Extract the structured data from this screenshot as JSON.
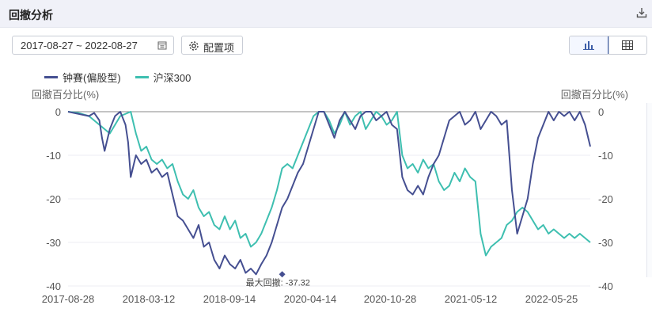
{
  "panel": {
    "title": "回撤分析"
  },
  "controls": {
    "date_range": "2017-08-27 ~ 2022-08-27",
    "config_label": "配置项"
  },
  "colors": {
    "series1": "#454f91",
    "series2": "#3ebfb0",
    "header_bg": "#f0f1f8"
  },
  "chart_data": {
    "type": "line",
    "y_label_left": "回撤百分比(%)",
    "y_label_right": "回撤百分比(%)",
    "ylim": [
      -40,
      0
    ],
    "y_ticks": [
      0,
      -10,
      -20,
      -30,
      -40
    ],
    "x_ticks": [
      "2017-08-28",
      "2018-03-12",
      "2018-09-14",
      "2020-04-14",
      "2020-10-28",
      "2021-05-12",
      "2022-05-25"
    ],
    "annotation": {
      "text": "最大回撤: -37.32",
      "x": 0.41,
      "y": -37.32
    },
    "x_domain": [
      0,
      1
    ],
    "series": [
      {
        "name": "钟賽(偏股型)",
        "color": "#454f91",
        "x": [
          0,
          0.02,
          0.04,
          0.05,
          0.06,
          0.065,
          0.07,
          0.08,
          0.09,
          0.1,
          0.11,
          0.115,
          0.12,
          0.13,
          0.14,
          0.15,
          0.16,
          0.17,
          0.18,
          0.19,
          0.2,
          0.21,
          0.22,
          0.23,
          0.24,
          0.25,
          0.26,
          0.27,
          0.28,
          0.29,
          0.3,
          0.31,
          0.32,
          0.33,
          0.34,
          0.35,
          0.36,
          0.37,
          0.38,
          0.39,
          0.4,
          0.41,
          0.42,
          0.43,
          0.44,
          0.45,
          0.46,
          0.47,
          0.48,
          0.49,
          0.5,
          0.51,
          0.52,
          0.53,
          0.54,
          0.55,
          0.56,
          0.57,
          0.58,
          0.59,
          0.6,
          0.61,
          0.62,
          0.63,
          0.64,
          0.65,
          0.66,
          0.67,
          0.68,
          0.69,
          0.7,
          0.71,
          0.72,
          0.73,
          0.74,
          0.75,
          0.76,
          0.77,
          0.78,
          0.79,
          0.8,
          0.81,
          0.82,
          0.83,
          0.84,
          0.85,
          0.86,
          0.87,
          0.88,
          0.89,
          0.9,
          0.91,
          0.92,
          0.93,
          0.94,
          0.95,
          0.96,
          0.97,
          0.98,
          0.99,
          1.0
        ],
        "y": [
          0,
          -0.5,
          -1,
          -0.3,
          -2,
          -6,
          -9,
          -4,
          -1,
          0,
          -3,
          -7,
          -15,
          -10,
          -12,
          -11,
          -14,
          -13,
          -15,
          -14,
          -19,
          -24,
          -25,
          -27,
          -29,
          -26,
          -31,
          -30,
          -34,
          -36,
          -33,
          -35,
          -36,
          -34,
          -37,
          -36,
          -37.32,
          -35,
          -33,
          -30,
          -26,
          -22,
          -20,
          -17,
          -14,
          -12,
          -8,
          -4,
          0,
          0,
          -3,
          -6,
          -2,
          0,
          -2,
          -4,
          -1,
          0,
          0,
          -2,
          -1,
          0,
          -3,
          -4,
          -15,
          -18,
          -19,
          -17,
          -19,
          -15,
          -12,
          -10,
          -6,
          -2,
          -1,
          0,
          -3,
          -2,
          0,
          -4,
          -2,
          0,
          -1,
          -3,
          -2,
          -18,
          -28,
          -24,
          -20,
          -12,
          -6,
          -3,
          0,
          -2,
          0,
          -1,
          0,
          -2,
          0,
          -3,
          -8
        ]
      },
      {
        "name": "沪深300",
        "color": "#3ebfb0",
        "x": [
          0,
          0.02,
          0.04,
          0.06,
          0.08,
          0.1,
          0.12,
          0.13,
          0.14,
          0.15,
          0.16,
          0.17,
          0.18,
          0.19,
          0.2,
          0.21,
          0.22,
          0.23,
          0.24,
          0.25,
          0.26,
          0.27,
          0.28,
          0.29,
          0.3,
          0.31,
          0.32,
          0.33,
          0.34,
          0.35,
          0.36,
          0.37,
          0.38,
          0.39,
          0.4,
          0.41,
          0.42,
          0.43,
          0.44,
          0.45,
          0.46,
          0.47,
          0.48,
          0.49,
          0.5,
          0.51,
          0.52,
          0.53,
          0.54,
          0.55,
          0.56,
          0.57,
          0.58,
          0.59,
          0.6,
          0.61,
          0.62,
          0.63,
          0.64,
          0.65,
          0.66,
          0.67,
          0.68,
          0.69,
          0.7,
          0.71,
          0.72,
          0.73,
          0.74,
          0.75,
          0.76,
          0.77,
          0.78,
          0.79,
          0.8,
          0.81,
          0.82,
          0.83,
          0.84,
          0.85,
          0.86,
          0.87,
          0.88,
          0.89,
          0.9,
          0.91,
          0.92,
          0.93,
          0.94,
          0.95,
          0.96,
          0.97,
          0.98,
          0.99,
          1.0
        ],
        "y": [
          0,
          -0.3,
          -1,
          -3,
          -5,
          -1,
          0,
          -5,
          -9,
          -8,
          -11,
          -12,
          -11,
          -13,
          -12,
          -16,
          -19,
          -20,
          -18,
          -22,
          -24,
          -23,
          -26,
          -27,
          -24,
          -27,
          -25,
          -29,
          -28,
          -31,
          -30,
          -28,
          -25,
          -22,
          -18,
          -13,
          -12,
          -13,
          -10,
          -7,
          -4,
          -1,
          0,
          0,
          -2,
          -5,
          -3,
          0,
          -3,
          -1,
          0,
          -4,
          -2,
          0,
          -1,
          -3,
          -2,
          0,
          -10,
          -13,
          -12,
          -14,
          -11,
          -13,
          -12,
          -16,
          -18,
          -17,
          -14,
          -16,
          -13,
          -15,
          -16,
          -28,
          -33,
          -31,
          -30,
          -29,
          -26,
          -25,
          -23,
          -22,
          -23,
          -25,
          -27,
          -26,
          -28,
          -27,
          -28,
          -29,
          -28,
          -29,
          -28,
          -29,
          -30
        ]
      }
    ]
  }
}
